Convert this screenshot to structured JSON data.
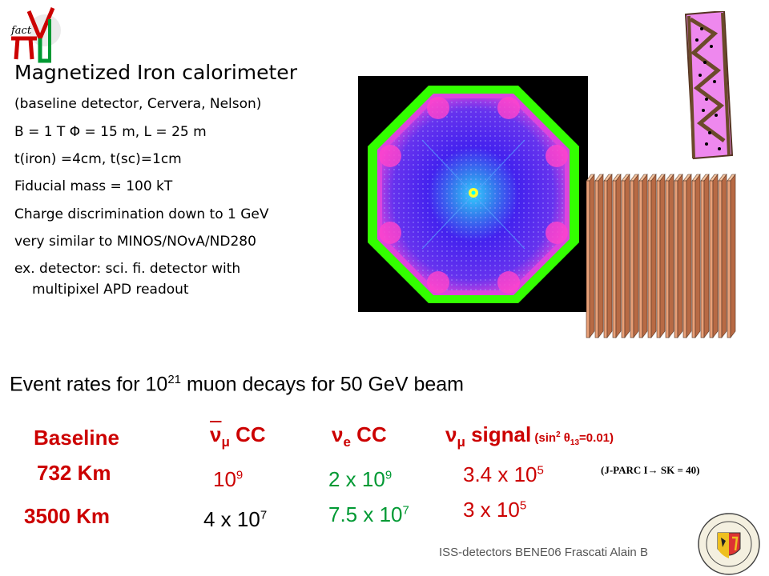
{
  "slide": {
    "title": "Magnetized Iron calorimeter",
    "bullets": [
      "(baseline detector, Cervera, Nelson)",
      "B = 1 T  Φ = 15 m, L = 25 m",
      "t(iron) =4cm, t(sc)=1cm",
      "Fiducial mass = 100 kT",
      "Charge discrimination down to 1 GeV",
      "very similar to MINOS/NOvA/ND280",
      "ex. detector: sci. fi. detector with",
      "multipixel APD readout"
    ],
    "rates_heading": {
      "pre": "Event rates for 10",
      "exp": "21",
      "post": " muon decays for 50 GeV beam"
    },
    "table": {
      "baseline_label": "Baseline",
      "col_numubar": {
        "nu": "ν",
        "sub": "μ",
        "label": " CC"
      },
      "col_nue": {
        "nu": "ν",
        "sub": "e",
        "label": " CC"
      },
      "col_signal": {
        "nu": "ν",
        "sub": "μ",
        "label": "  signal",
        "paren_pre": " (sin",
        "paren_sup": "2",
        "paren_theta": " θ",
        "paren_sub": "13",
        "paren_post": "=0.01)"
      },
      "rows": [
        {
          "baseline": "732 Km",
          "numubar_base": "10",
          "numubar_exp": "9",
          "nue_base": "2 x 10",
          "nue_exp": "9",
          "signal_base": "3.4 x 10",
          "signal_exp": "5"
        },
        {
          "baseline": "3500 Km",
          "numubar_base": "4 x 10",
          "numubar_exp": "7",
          "nue_base": "7.5 x 10",
          "nue_exp": "7",
          "signal_base": "3 x 10",
          "signal_exp": "5"
        }
      ],
      "note": "(J-PARC I→ SK = 40)"
    },
    "logo_text": "fact",
    "footer": "ISS-detectors  BENE06 Frascati    Alain B"
  },
  "colors": {
    "red": "#cc0000",
    "green": "#009933",
    "octagon_outer": "#33ff00",
    "octagon_inner": "#4422ee",
    "plates": "#e8a078"
  }
}
